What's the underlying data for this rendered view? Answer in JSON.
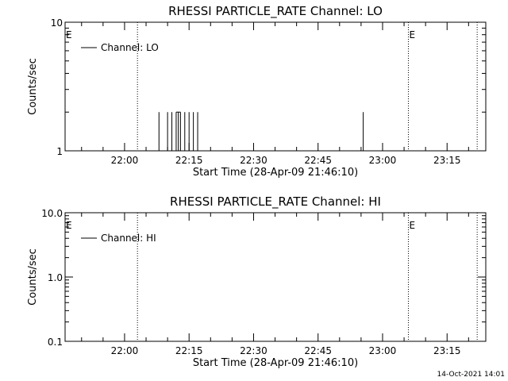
{
  "chart_data": [
    {
      "type": "line",
      "title": "RHESSI PARTICLE_RATE Channel: LO",
      "xlabel": "Start Time (28-Apr-09 21:46:10)",
      "ylabel": "Counts/sec",
      "yscale": "log",
      "xlim": [
        "21:46:10",
        "23:24:00"
      ],
      "ylim": [
        1,
        10
      ],
      "x_ticks": [
        "22:00",
        "22:15",
        "22:30",
        "22:45",
        "23:00",
        "23:15"
      ],
      "y_ticks": [
        "1",
        "10"
      ],
      "legend": "top-left",
      "legend_entries": [
        "Channel: LO"
      ],
      "markers": [
        {
          "label": "E",
          "x": "21:46:10",
          "style": "none"
        },
        {
          "label": "",
          "x": "22:03:00",
          "style": "dotted"
        },
        {
          "label": "E",
          "x": "23:06:00",
          "style": "dotted"
        },
        {
          "label": "",
          "x": "23:22:00",
          "style": "dotted"
        }
      ],
      "series": [
        {
          "name": "Channel: LO",
          "x": [
            "22:07:30",
            "22:08:00",
            "22:09:30",
            "22:10:00",
            "22:10:30",
            "22:11:00",
            "22:11:30",
            "22:12:00",
            "22:12:30",
            "22:13:00",
            "22:13:30",
            "22:14:00",
            "22:14:30",
            "22:15:00",
            "22:15:30",
            "22:16:00",
            "22:16:30",
            "22:17:00",
            "22:55:00",
            "22:55:30"
          ],
          "values": [
            1,
            2,
            1,
            2,
            1,
            2,
            1,
            2,
            2,
            2,
            1,
            2,
            1,
            2,
            1,
            2,
            1,
            2,
            1,
            2
          ]
        }
      ]
    },
    {
      "type": "line",
      "title": "RHESSI PARTICLE_RATE Channel: HI",
      "xlabel": "Start Time (28-Apr-09 21:46:10)",
      "ylabel": "Counts/sec",
      "yscale": "log",
      "xlim": [
        "21:46:10",
        "23:24:00"
      ],
      "ylim": [
        0.1,
        10
      ],
      "x_ticks": [
        "22:00",
        "22:15",
        "22:30",
        "22:45",
        "23:00",
        "23:15"
      ],
      "y_ticks": [
        "10.0",
        "1.0",
        "0.1"
      ],
      "legend": "top-left",
      "legend_entries": [
        "Channel: HI"
      ],
      "markers": [
        {
          "label": "E",
          "x": "21:46:10",
          "style": "none"
        },
        {
          "label": "",
          "x": "22:03:00",
          "style": "dotted"
        },
        {
          "label": "E",
          "x": "23:06:00",
          "style": "dotted"
        },
        {
          "label": "",
          "x": "23:22:00",
          "style": "dotted"
        }
      ],
      "series": [
        {
          "name": "Channel: HI",
          "x": [],
          "values": []
        }
      ]
    }
  ],
  "footer": {
    "timestamp": "14-Oct-2021 14:01"
  }
}
